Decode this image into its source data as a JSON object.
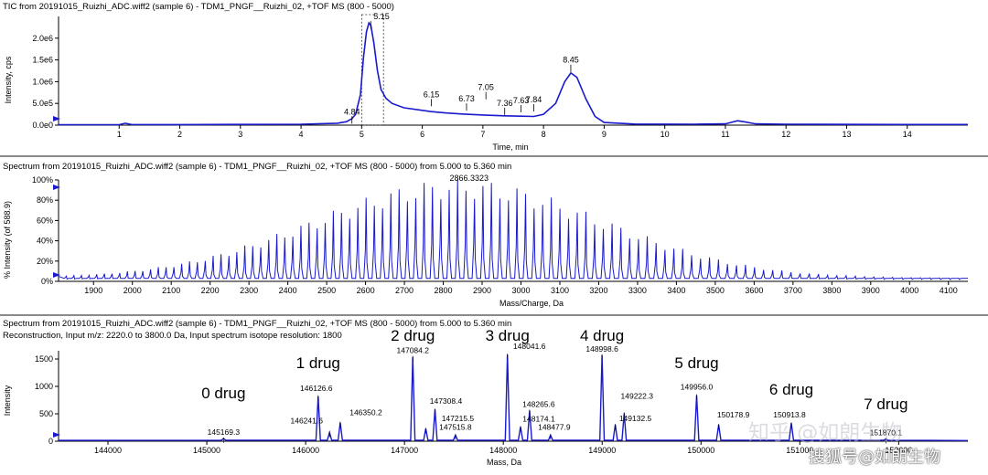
{
  "colors": {
    "trace": "#1a1acd",
    "axis": "#000000",
    "text": "#000000",
    "separator": "#8a8a8a"
  },
  "chart_data": [
    {
      "type": "line",
      "title": "TIC from 20191015_Ruizhi_ADC.wiff2 (sample 6) - TDM1_PNGF__Ruizhi_02, +TOF MS (800 - 5000)",
      "xlabel": "Time, min",
      "ylabel": "Intensity, cps",
      "xlim": [
        0,
        15.0
      ],
      "ylim": [
        0,
        2500000.0
      ],
      "xticks": [
        1,
        2,
        3,
        4,
        5,
        6,
        7,
        8,
        9,
        10,
        11,
        12,
        13,
        14
      ],
      "yticks": [
        0,
        500000,
        1000000,
        1500000,
        2000000
      ],
      "ytick_labels": [
        "0.0e0",
        "5.0e5",
        "1.0e6",
        "1.5e6",
        "2.0e6"
      ],
      "series": [
        {
          "name": "TIC",
          "x": [
            0,
            1.0,
            1.1,
            1.2,
            2.0,
            4.0,
            4.6,
            4.75,
            4.84,
            4.9,
            4.98,
            5.03,
            5.08,
            5.12,
            5.15,
            5.2,
            5.26,
            5.32,
            5.4,
            5.5,
            5.7,
            6.0,
            6.15,
            6.4,
            6.73,
            7.05,
            7.36,
            7.63,
            7.84,
            8.0,
            8.2,
            8.35,
            8.45,
            8.55,
            8.7,
            8.85,
            9.0,
            9.5,
            10.5,
            11.0,
            11.2,
            11.3,
            11.5,
            12.0,
            14.0,
            15.0
          ],
          "y": [
            10000,
            10000,
            45000,
            15000,
            12000,
            20000,
            45000,
            80000,
            150000,
            250000,
            700000,
            1550000,
            2150000,
            2350000,
            2300000,
            1900000,
            1250000,
            820000,
            620000,
            500000,
            400000,
            340000,
            310000,
            280000,
            250000,
            230000,
            215000,
            205000,
            200000,
            250000,
            500000,
            1000000,
            1200000,
            1100000,
            600000,
            200000,
            60000,
            25000,
            20000,
            30000,
            100000,
            80000,
            30000,
            20000,
            15000,
            15000
          ]
        }
      ],
      "peak_labels": [
        {
          "x": 4.84,
          "y": 160000,
          "label": "4.84"
        },
        {
          "x": 5.15,
          "y": 2350000,
          "label": "5.15"
        },
        {
          "x": 6.15,
          "y": 560000,
          "label": "6.15"
        },
        {
          "x": 6.73,
          "y": 460000,
          "label": "6.73"
        },
        {
          "x": 7.05,
          "y": 720000,
          "label": "7.05"
        },
        {
          "x": 7.36,
          "y": 360000,
          "label": "7.36"
        },
        {
          "x": 7.63,
          "y": 420000,
          "label": "7.63"
        },
        {
          "x": 7.84,
          "y": 440000,
          "label": "7.84"
        },
        {
          "x": 8.45,
          "y": 1350000,
          "label": "8.45"
        }
      ],
      "selection_range": [
        5.0,
        5.36
      ]
    },
    {
      "type": "line",
      "title": "Spectrum from 20191015_Ruizhi_ADC.wiff2 (sample 6) - TDM1_PNGF__Ruizhi_02, +TOF MS (800 - 5000) from 5.000 to 5.360 min",
      "xlabel": "Mass/Charge, Da",
      "ylabel": "% Intensity (of 588.9)",
      "xlim": [
        1810,
        4150
      ],
      "ylim": [
        0,
        100
      ],
      "xticks": [
        1900,
        2000,
        2100,
        2200,
        2300,
        2400,
        2500,
        2600,
        2700,
        2800,
        2900,
        3000,
        3100,
        3200,
        3300,
        3400,
        3500,
        3600,
        3700,
        3800,
        3900,
        4000,
        4100
      ],
      "yticks": [
        0,
        20,
        40,
        60,
        80,
        100
      ],
      "ytick_labels": [
        "0%",
        "20%",
        "40%",
        "60%",
        "80%",
        "100%"
      ],
      "envelope": {
        "center": 2840,
        "sigma": 370,
        "peak_max": 98,
        "spacing": 19.5,
        "baseline": 3
      },
      "peak_labels": [
        {
          "x": 2866.3323,
          "label": "2866.3323"
        }
      ]
    },
    {
      "type": "line",
      "title": "Spectrum from 20191015_Ruizhi_ADC.wiff2 (sample 6) - TDM1_PNGF__Ruizhi_02, +TOF MS (800 - 5000) from 5.000 to 5.360 min",
      "subtitle": "Reconstruction,  Input m/z: 2220.0 to 3800.0 Da, Input spectrum isotope resolution: 1800",
      "xlabel": "Mass, Da",
      "ylabel": "Intensity",
      "xlim": [
        143500,
        152700
      ],
      "ylim": [
        0,
        1650
      ],
      "xticks": [
        144000,
        145000,
        146000,
        147000,
        148000,
        149000,
        150000,
        151000,
        152000
      ],
      "yticks": [
        0,
        500,
        1000,
        1500
      ],
      "peaks": [
        {
          "mass": 145169.3,
          "intensity": 50,
          "label": "145169.3"
        },
        {
          "mass": 146126.6,
          "intensity": 820,
          "label": "146126.6"
        },
        {
          "mass": 146241.6,
          "intensity": 160,
          "label": "146241.6"
        },
        {
          "mass": 146350.2,
          "intensity": 340,
          "label": "146350.2"
        },
        {
          "mass": 147084.2,
          "intensity": 1540,
          "label": "147084.2"
        },
        {
          "mass": 147308.4,
          "intensity": 580,
          "label": "147308.4"
        },
        {
          "mass": 147215.5,
          "intensity": 230,
          "label": "147215.5"
        },
        {
          "mass": 147515.8,
          "intensity": 110,
          "label": "147515.8"
        },
        {
          "mass": 148041.6,
          "intensity": 1580,
          "label": "148041.6"
        },
        {
          "mass": 148265.6,
          "intensity": 560,
          "label": "148265.6"
        },
        {
          "mass": 148174.1,
          "intensity": 260,
          "label": "148174.1"
        },
        {
          "mass": 148477.9,
          "intensity": 110,
          "label": "148477.9"
        },
        {
          "mass": 148998.6,
          "intensity": 1570,
          "label": "148998.6"
        },
        {
          "mass": 149222.3,
          "intensity": 510,
          "label": "149222.3"
        },
        {
          "mass": 149132.5,
          "intensity": 300,
          "label": "149132.5"
        },
        {
          "mass": 149956.0,
          "intensity": 840,
          "label": "149956.0"
        },
        {
          "mass": 150178.9,
          "intensity": 300,
          "label": "150178.9"
        },
        {
          "mass": 150913.8,
          "intensity": 330,
          "label": "150913.8"
        },
        {
          "mass": 151870.1,
          "intensity": 40,
          "label": "151870.1"
        }
      ],
      "drug_annotations": [
        {
          "label": "0 drug",
          "mass": 145169.3
        },
        {
          "label": "1 drug",
          "mass": 146126.6
        },
        {
          "label": "2 drug",
          "mass": 147084.2
        },
        {
          "label": "3 drug",
          "mass": 148041.6
        },
        {
          "label": "4 drug",
          "mass": 148998.6
        },
        {
          "label": "5 drug",
          "mass": 149956.0
        },
        {
          "label": "6 drug",
          "mass": 150913.8
        },
        {
          "label": "7 drug",
          "mass": 151870.1
        }
      ]
    }
  ],
  "watermarks": {
    "zhihu": "知乎 @如朗生物",
    "sohu": "搜狐号@如朗生物"
  }
}
